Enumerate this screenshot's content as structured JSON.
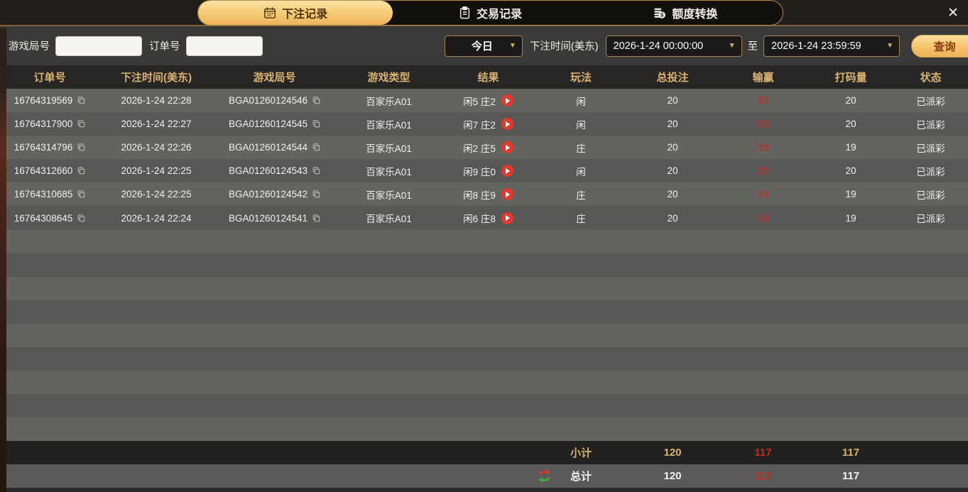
{
  "tabs": [
    {
      "label": "下注记录",
      "icon": "calendar-icon",
      "active": true
    },
    {
      "label": "交易记录",
      "icon": "clipboard-icon",
      "active": false
    },
    {
      "label": "额度转换",
      "icon": "coins-icon",
      "active": false
    }
  ],
  "close_glyph": "✕",
  "filters": {
    "game_round_label": "游戏局号",
    "game_round_value": "",
    "order_no_label": "订单号",
    "order_no_value": "",
    "range_preset": "今日",
    "bet_time_label": "下注时间(美东)",
    "start_time": "2026-1-24 00:00:00",
    "to_label": "至",
    "end_time": "2026-1-24 23:59:59",
    "search_label": "查询",
    "dropdown_arrow": "▼"
  },
  "table": {
    "headers": [
      "订单号",
      "下注时间(美东)",
      "游戏局号",
      "游戏类型",
      "结果",
      "玩法",
      "总投注",
      "输赢",
      "打码量",
      "状态"
    ],
    "rows": [
      {
        "order_no": "16764319569",
        "time": "2026-1-24 22:28",
        "round": "BGA01260124546",
        "game": "百家乐A01",
        "result": "闲5 庄2",
        "play": "闲",
        "total_bet": "20",
        "win_loss": "20",
        "turnover": "20",
        "status": "已派彩"
      },
      {
        "order_no": "16764317900",
        "time": "2026-1-24 22:27",
        "round": "BGA01260124545",
        "game": "百家乐A01",
        "result": "闲7 庄2",
        "play": "闲",
        "total_bet": "20",
        "win_loss": "20",
        "turnover": "20",
        "status": "已派彩"
      },
      {
        "order_no": "16764314796",
        "time": "2026-1-24 22:26",
        "round": "BGA01260124544",
        "game": "百家乐A01",
        "result": "闲2 庄5",
        "play": "庄",
        "total_bet": "20",
        "win_loss": "19",
        "turnover": "19",
        "status": "已派彩"
      },
      {
        "order_no": "16764312660",
        "time": "2026-1-24 22:25",
        "round": "BGA01260124543",
        "game": "百家乐A01",
        "result": "闲9 庄0",
        "play": "闲",
        "total_bet": "20",
        "win_loss": "20",
        "turnover": "20",
        "status": "已派彩"
      },
      {
        "order_no": "16764310685",
        "time": "2026-1-24 22:25",
        "round": "BGA01260124542",
        "game": "百家乐A01",
        "result": "闲8 庄9",
        "play": "庄",
        "total_bet": "20",
        "win_loss": "19",
        "turnover": "19",
        "status": "已派彩"
      },
      {
        "order_no": "16764308645",
        "time": "2026-1-24 22:24",
        "round": "BGA01260124541",
        "game": "百家乐A01",
        "result": "闲6 庄8",
        "play": "庄",
        "total_bet": "20",
        "win_loss": "19",
        "turnover": "19",
        "status": "已派彩"
      }
    ],
    "subtotal": {
      "label": "小计",
      "total_bet": "120",
      "win_loss": "117",
      "turnover": "117"
    },
    "total": {
      "label": "总计",
      "total_bet": "120",
      "win_loss": "117",
      "turnover": "117"
    }
  },
  "colors": {
    "accent_gold": "#d9b273",
    "active_tab_top": "#fbe4a4",
    "active_tab_bottom": "#eeb45c",
    "loss_red": "#c8281b",
    "play_button_red": "#e0392e",
    "swap_red": "#e03328",
    "swap_green": "#3fae3c",
    "row_light": "#656360",
    "row_dark": "#585755",
    "status_text": "#f2f1ef"
  }
}
